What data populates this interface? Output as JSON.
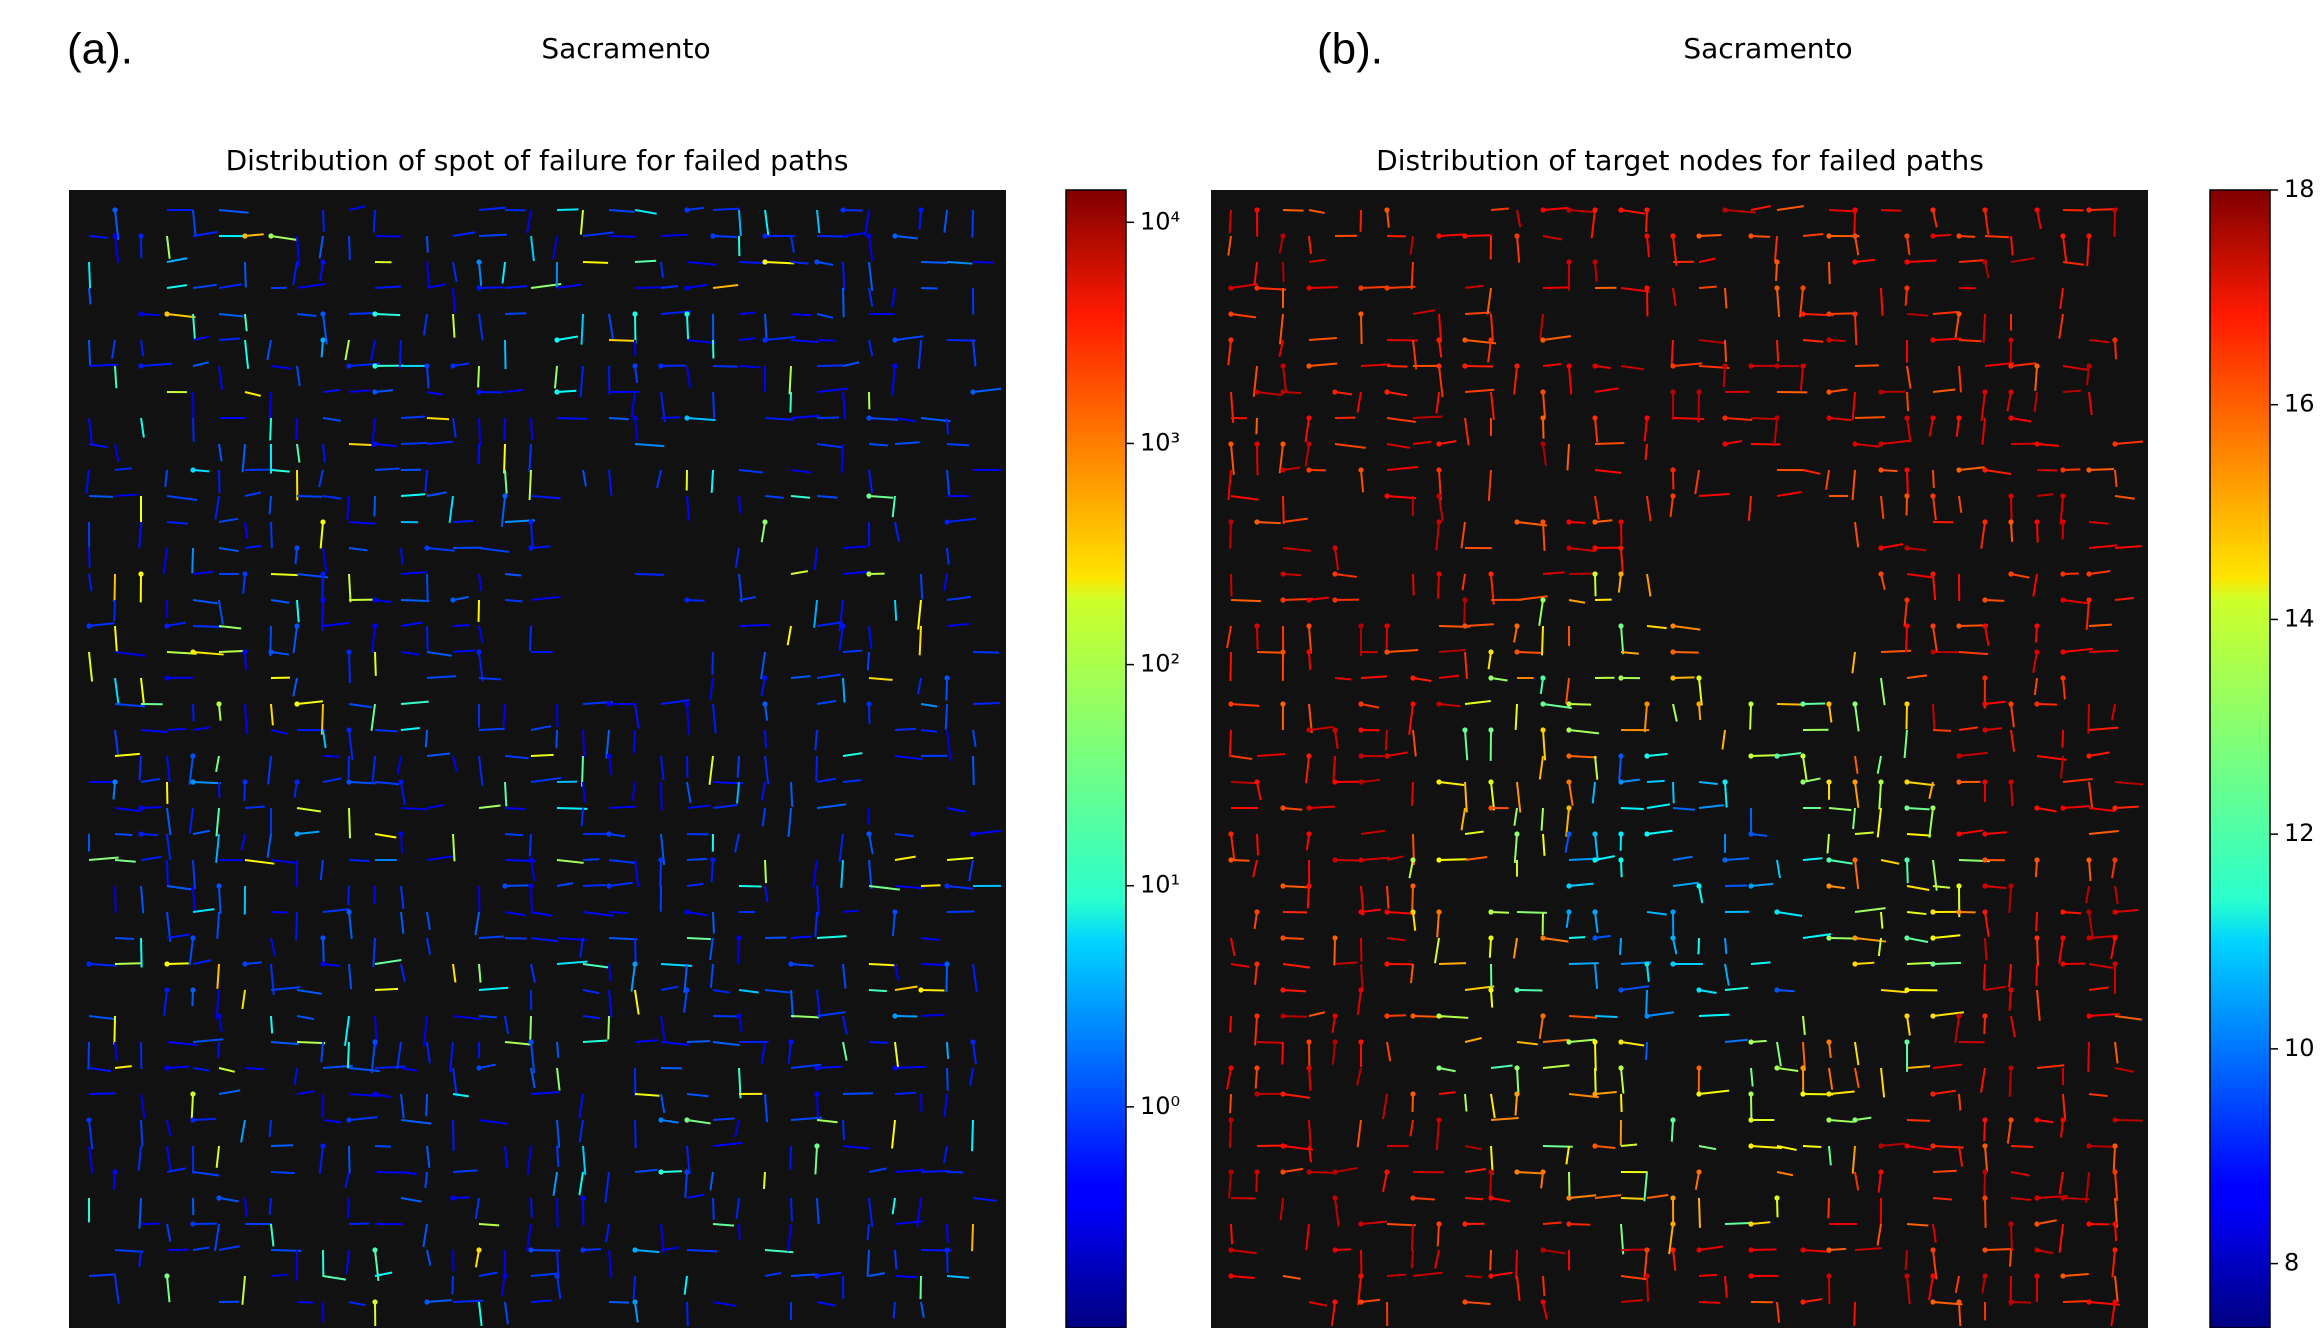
{
  "chart_data": [
    {
      "type": "map",
      "panel_label": "(a).",
      "title": "Sacramento",
      "subtitle": "Distribution of spot of failure for failed paths",
      "colorbar": {
        "colormap": "jet",
        "log": true,
        "ylim": [
          0.1,
          14000
        ],
        "yticks": [
          {
            "value": 1,
            "label": "10⁰"
          },
          {
            "value": 10,
            "label": "10¹"
          },
          {
            "value": 100,
            "label": "10²"
          },
          {
            "value": 1000,
            "label": "10³"
          },
          {
            "value": 10000,
            "label": "10⁴"
          }
        ]
      }
    },
    {
      "type": "map",
      "panel_label": "(b).",
      "title": "Sacramento",
      "subtitle": "Distribution of target nodes for failed paths",
      "colorbar": {
        "colormap": "jet",
        "log": false,
        "ylim": [
          7.4,
          18
        ],
        "yticks": [
          8,
          10,
          12,
          14,
          16,
          18
        ]
      }
    }
  ]
}
